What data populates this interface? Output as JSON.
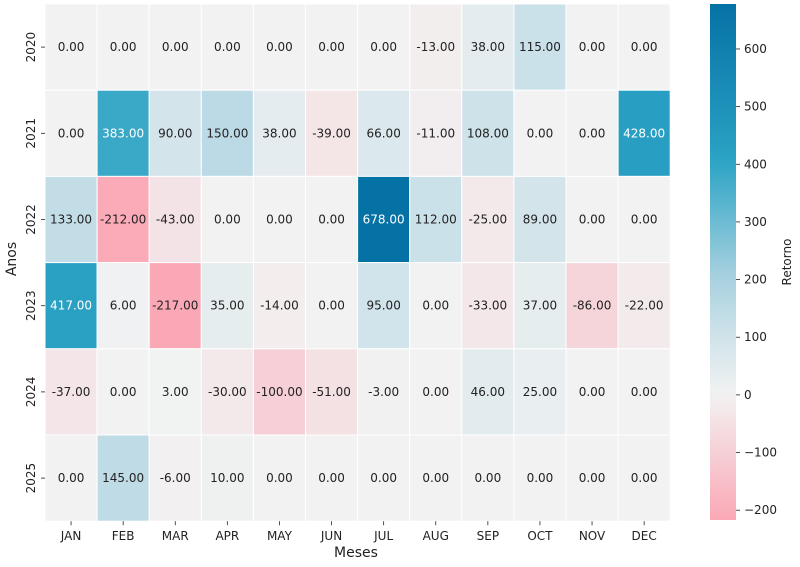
{
  "chart_data": {
    "type": "heatmap",
    "xlabel": "Meses",
    "ylabel": "Anos",
    "colorbar_label": "Retorno",
    "x_categories": [
      "JAN",
      "FEB",
      "MAR",
      "APR",
      "MAY",
      "JUN",
      "JUL",
      "AUG",
      "SEP",
      "OCT",
      "NOV",
      "DEC"
    ],
    "y_categories": [
      "2020",
      "2021",
      "2022",
      "2023",
      "2024",
      "2025"
    ],
    "values": [
      [
        0,
        0,
        0,
        0,
        0,
        0,
        0,
        -13,
        38,
        115,
        0,
        0
      ],
      [
        0,
        383,
        90,
        150,
        38,
        -39,
        66,
        -11,
        108,
        0,
        0,
        428
      ],
      [
        133,
        -212,
        -43,
        0,
        0,
        0,
        678,
        112,
        -25,
        89,
        0,
        0
      ],
      [
        417,
        6,
        -217,
        35,
        -14,
        0,
        95,
        0,
        -33,
        37,
        -86,
        -22
      ],
      [
        -37,
        0,
        3,
        -30,
        -100,
        -51,
        -3,
        0,
        46,
        25,
        0,
        0
      ],
      [
        0,
        145,
        -6,
        10,
        0,
        0,
        0,
        0,
        0,
        0,
        0,
        0
      ]
    ],
    "value_format": "2 decimals",
    "color_range": [
      -217,
      678
    ],
    "colorbar_ticks": [
      -200,
      -100,
      0,
      100,
      200,
      300,
      400,
      500,
      600
    ],
    "colors": {
      "negative": "#fba8b6",
      "zero": "#f2f2f2",
      "positive": "#0572a6"
    }
  }
}
